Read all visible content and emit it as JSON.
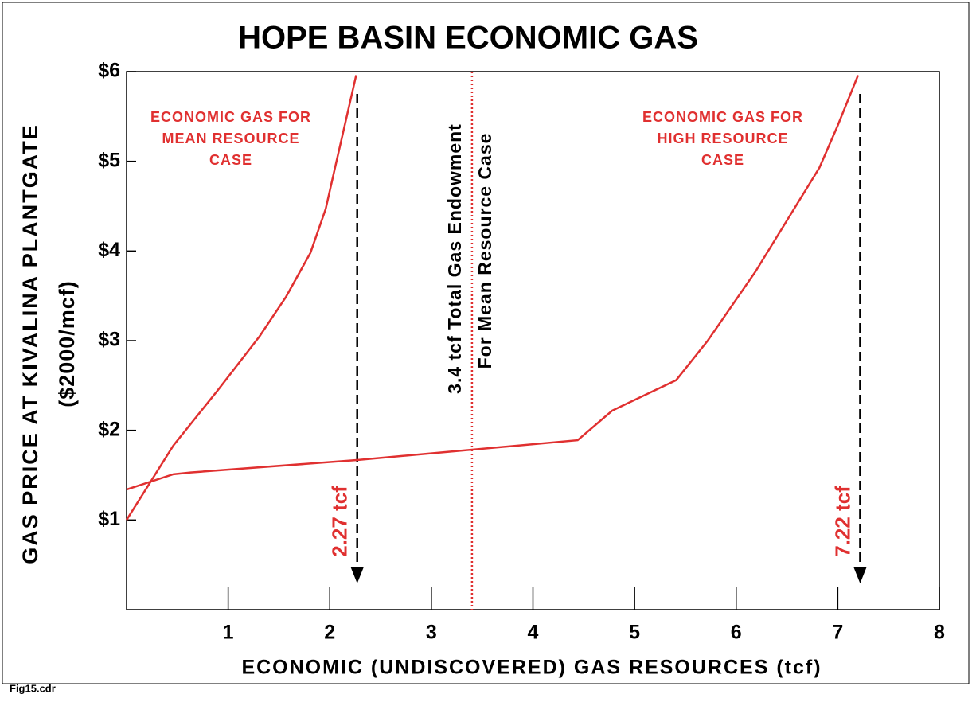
{
  "chart_data": {
    "type": "line",
    "title": "HOPE BASIN ECONOMIC GAS",
    "xlabel": "ECONOMIC (UNDISCOVERED) GAS RESOURCES (tcf)",
    "ylabel": [
      "GAS PRICE AT KIVALINA PLANTGATE",
      "($2000/mcf)"
    ],
    "xlim": [
      0,
      8
    ],
    "ylim": [
      0,
      6
    ],
    "xticks": [
      1,
      2,
      3,
      4,
      5,
      6,
      7,
      8
    ],
    "yticks": [
      {
        "value": 1,
        "label": "$1"
      },
      {
        "value": 2,
        "label": "$2"
      },
      {
        "value": 3,
        "label": "$3"
      },
      {
        "value": 4,
        "label": "$4"
      },
      {
        "value": 5,
        "label": "$5"
      },
      {
        "value": 6,
        "label": "$6"
      }
    ],
    "series": [
      {
        "label": [
          "ECONOMIC GAS FOR",
          "MEAN RESOURCE",
          "CASE"
        ],
        "color": "#e03030",
        "x": [
          0,
          0.46,
          0.9,
          1.31,
          1.57,
          1.81,
          1.96,
          2.04,
          2.26
        ],
        "values": [
          1.0,
          1.83,
          2.45,
          3.05,
          3.49,
          3.98,
          4.47,
          4.87,
          5.96
        ]
      },
      {
        "label": [
          "ECONOMIC GAS FOR",
          "HIGH RESOURCE",
          "CASE"
        ],
        "color": "#e03030",
        "x": [
          0,
          0.46,
          0.63,
          2.28,
          4.44,
          4.78,
          5.41,
          5.72,
          6.19,
          6.82,
          7.0,
          7.2
        ],
        "values": [
          1.34,
          1.51,
          1.53,
          1.67,
          1.89,
          2.22,
          2.56,
          3.0,
          3.77,
          4.93,
          5.4,
          5.96
        ]
      }
    ],
    "annotations": [
      {
        "text": "2.27 tcf",
        "x": 2.27
      },
      {
        "text": "7.22 tcf",
        "x": 7.22
      },
      {
        "text": [
          "3.4 tcf Total Gas Endowment",
          "For Mean Resource Case"
        ],
        "x": 3.4
      }
    ],
    "footer": "Fig15.cdr"
  }
}
